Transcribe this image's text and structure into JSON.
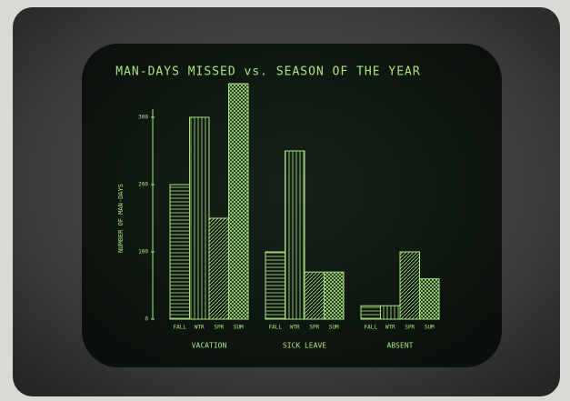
{
  "chart_data": {
    "type": "bar",
    "title": "MAN-DAYS MISSED vs. SEASON OF THE YEAR",
    "y_label": "NUMBER OF MAN-DAYS",
    "categories": [
      "VACATION",
      "SICK LEAVE",
      "ABSENT"
    ],
    "series": [
      {
        "name": "FALL",
        "color": "#a8e57f",
        "values": [
          200,
          100,
          20
        ]
      },
      {
        "name": "WTR",
        "color": "#a8e57f",
        "values": [
          300,
          250,
          20
        ]
      },
      {
        "name": "SPR",
        "color": "#a8e57f",
        "values": [
          150,
          70,
          100
        ]
      },
      {
        "name": "SUM",
        "color": "#a8e57f",
        "values": [
          350,
          70,
          60
        ]
      }
    ],
    "ylim": [
      0,
      350
    ],
    "yticks": [
      0,
      100,
      200,
      300
    ]
  }
}
